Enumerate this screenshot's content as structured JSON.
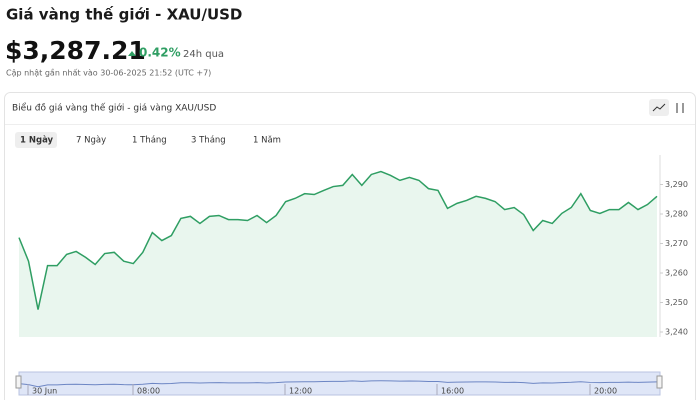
{
  "header": {
    "title": "Giá vàng thế giới - XAU/USD",
    "price": "$3,287.21",
    "change": "0.42%",
    "change_period": "24h qua",
    "updated": "Cập nhật gần nhất vào 30-06-2025 21:52 (UTC +7)"
  },
  "tabs": [
    "1 Ngày",
    "7 Ngày",
    "1 Tháng",
    "3 Tháng",
    "1 Năm"
  ],
  "navigator": {
    "labels": [
      "30 Jun",
      "08:00",
      "12:00",
      "16:00",
      "20:00"
    ]
  },
  "chart_data": {
    "type": "area",
    "title": "Biểu đồ giá vàng thế giới - giá vàng XAU/USD",
    "color": "#2f9e63",
    "fill": "#e9f6ee",
    "values": [
      3272,
      3264,
      3247.6,
      3262.5,
      3262.5,
      3266.3,
      3267.3,
      3265.3,
      3262.9,
      3266.6,
      3267,
      3264,
      3263.2,
      3267,
      3273.7,
      3271,
      3272.7,
      3278.5,
      3279.2,
      3276.8,
      3279.2,
      3279.5,
      3278.1,
      3278.1,
      3277.8,
      3279.5,
      3277.1,
      3279.5,
      3284.2,
      3285.3,
      3286.9,
      3286.6,
      3288,
      3289.3,
      3289.7,
      3293.4,
      3289.7,
      3293.4,
      3294.4,
      3293.1,
      3291.4,
      3292.4,
      3291.4,
      3288.6,
      3288,
      3281.9,
      3283.6,
      3284.6,
      3286,
      3285.3,
      3284.2,
      3281.5,
      3282.2,
      3279.8,
      3274.4,
      3277.8,
      3276.8,
      3280.2,
      3282.2,
      3286.9,
      3281.2,
      3280.2,
      3281.5,
      3281.5,
      3283.9,
      3281.5,
      3283.2,
      3286
    ],
    "ylim": [
      3238.3,
      3300
    ],
    "yticks": [
      {
        "value": 3240,
        "label": "3,240"
      },
      {
        "value": 3250,
        "label": "3,250"
      },
      {
        "value": 3260,
        "label": "3,260"
      },
      {
        "value": 3270,
        "label": "3,270"
      },
      {
        "value": 3280,
        "label": "3,280"
      },
      {
        "value": 3290,
        "label": "3,290"
      }
    ]
  }
}
